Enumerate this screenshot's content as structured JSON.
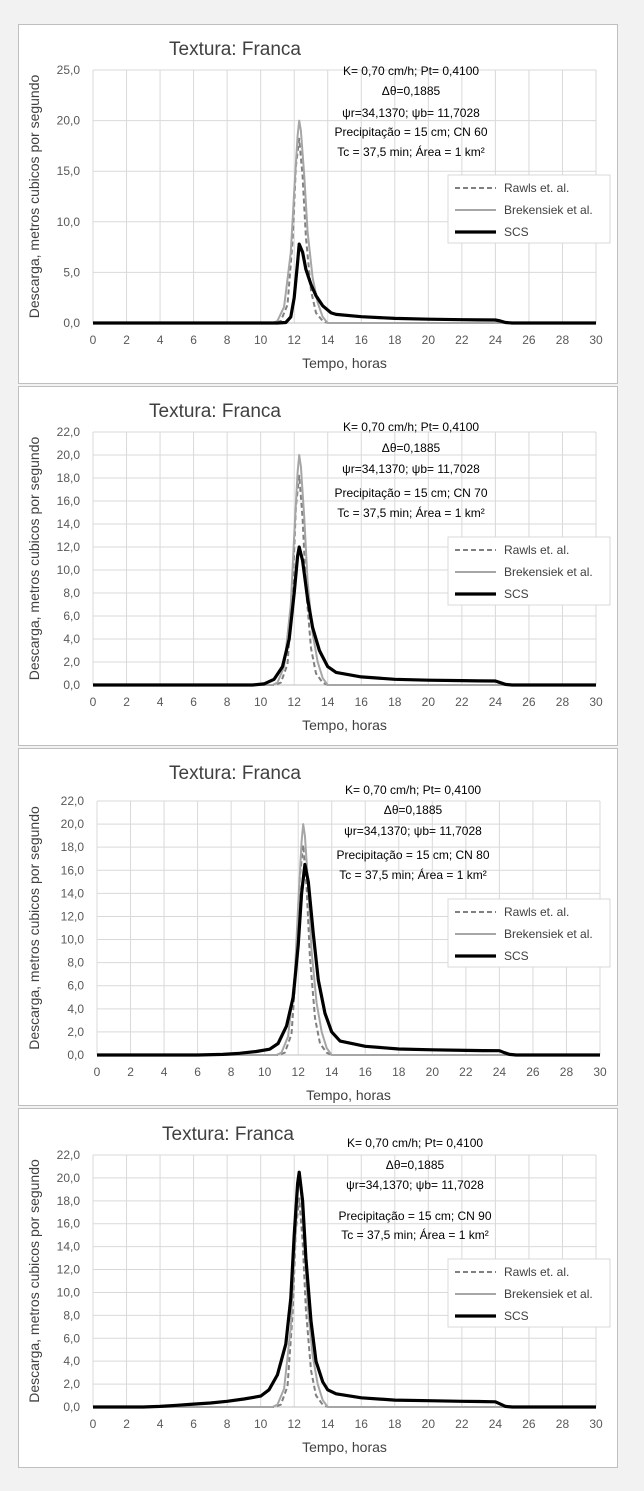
{
  "chart_data": [
    {
      "type": "line",
      "title": "Textura: Franca",
      "xlabel": "Tempo, horas",
      "ylabel": "Descarga, metros cubicos por segundo",
      "xlim": [
        0,
        30
      ],
      "ylim": [
        0,
        25
      ],
      "xticks": [
        "0",
        "2",
        "4",
        "6",
        "8",
        "10",
        "12",
        "14",
        "16",
        "18",
        "20",
        "22",
        "24",
        "26",
        "28",
        "30"
      ],
      "yticks": [
        "0,0",
        "5,0",
        "10,0",
        "15,0",
        "20,0",
        "25,0"
      ],
      "grid": true,
      "legend_position": "right",
      "annotations": [
        "K= 0,70 cm/h; Pt= 0,4100",
        "Δθ=0,1885",
        "ψr=34,1370;  ψb= 11,7028",
        "Precipitação = 15 cm; CN 60",
        "Tc = 37,5  min; Área = 1 km²"
      ],
      "series": [
        {
          "name": "Rawls et. al.",
          "color": "#808080",
          "style": "dashed",
          "x": [
            0,
            10.8,
            11.2,
            11.6,
            11.9,
            12.1,
            12.3,
            12.5,
            12.7,
            13.0,
            13.3,
            13.7,
            14.0,
            30
          ],
          "y": [
            0,
            0,
            0.2,
            1.8,
            8.0,
            15.5,
            18.2,
            14.5,
            8.5,
            3.2,
            1.0,
            0.2,
            0,
            0
          ]
        },
        {
          "name": "Brekensiek et al.",
          "color": "#a6a6a6",
          "style": "solid",
          "x": [
            0,
            10.7,
            11.0,
            11.4,
            11.8,
            12.0,
            12.2,
            12.3,
            12.4,
            12.6,
            12.8,
            13.1,
            13.4,
            13.7,
            14.0,
            30
          ],
          "y": [
            0,
            0,
            0.2,
            1.6,
            7.0,
            13.0,
            18.5,
            20.0,
            19.0,
            14.5,
            9.0,
            4.5,
            2.0,
            0.6,
            0,
            0
          ]
        },
        {
          "name": "SCS",
          "color": "#000000",
          "style": "solid",
          "x": [
            0,
            11.0,
            11.5,
            11.8,
            12.0,
            12.2,
            12.3,
            12.5,
            12.7,
            13.0,
            13.3,
            13.7,
            14.2,
            14.5,
            16,
            18,
            20,
            22,
            23,
            24,
            24.3,
            24.6,
            25,
            30
          ],
          "y": [
            0,
            0,
            0.05,
            0.6,
            2.5,
            6.0,
            7.8,
            7.0,
            5.3,
            3.8,
            2.7,
            1.7,
            1.0,
            0.85,
            0.62,
            0.45,
            0.38,
            0.33,
            0.31,
            0.3,
            0.2,
            0.05,
            0,
            0
          ]
        }
      ]
    },
    {
      "type": "line",
      "title": "Textura: Franca",
      "xlabel": "Tempo, horas",
      "ylabel": "Descarga, metros cubicos por segundo",
      "xlim": [
        0,
        30
      ],
      "ylim": [
        0,
        22
      ],
      "xticks": [
        "0",
        "2",
        "4",
        "6",
        "8",
        "10",
        "12",
        "14",
        "16",
        "18",
        "20",
        "22",
        "24",
        "26",
        "28",
        "30"
      ],
      "yticks": [
        "0,0",
        "2,0",
        "4,0",
        "6,0",
        "8,0",
        "10,0",
        "12,0",
        "14,0",
        "16,0",
        "18,0",
        "20,0",
        "22,0"
      ],
      "grid": true,
      "legend_position": "right",
      "annotations": [
        "K= 0,70 cm/h; Pt= 0,4100",
        "Δθ=0,1885",
        "ψr=34,1370;  ψb= 11,7028",
        "Precipitação = 15 cm; CN 70",
        "Tc = 37,5  min; Área = 1 km²"
      ],
      "series": [
        {
          "name": "Rawls et. al.",
          "color": "#808080",
          "style": "dashed",
          "x": [
            0,
            10.8,
            11.2,
            11.6,
            11.9,
            12.1,
            12.3,
            12.5,
            12.7,
            13.0,
            13.3,
            13.7,
            14.0,
            30
          ],
          "y": [
            0,
            0,
            0.2,
            1.8,
            8.0,
            15.5,
            18.2,
            14.5,
            8.5,
            3.2,
            1.0,
            0.2,
            0,
            0
          ]
        },
        {
          "name": "Brekensiek et al.",
          "color": "#a6a6a6",
          "style": "solid",
          "x": [
            0,
            10.7,
            11.0,
            11.4,
            11.8,
            12.0,
            12.2,
            12.3,
            12.4,
            12.6,
            12.8,
            13.1,
            13.4,
            13.7,
            14.0,
            30
          ],
          "y": [
            0,
            0,
            0.2,
            1.6,
            7.0,
            13.0,
            18.5,
            20.0,
            19.0,
            14.5,
            9.0,
            4.5,
            2.0,
            0.6,
            0,
            0
          ]
        },
        {
          "name": "SCS",
          "color": "#000000",
          "style": "solid",
          "x": [
            0,
            9.5,
            10.2,
            10.8,
            11.3,
            11.7,
            12.0,
            12.2,
            12.3,
            12.5,
            12.8,
            13.1,
            13.5,
            14.0,
            14.5,
            16,
            18,
            20,
            22,
            23,
            24,
            24.3,
            24.6,
            25,
            30
          ],
          "y": [
            0,
            0,
            0.1,
            0.5,
            1.6,
            4.0,
            8.0,
            11.2,
            12.0,
            10.8,
            7.5,
            5.0,
            3.0,
            1.6,
            1.1,
            0.7,
            0.5,
            0.42,
            0.38,
            0.36,
            0.35,
            0.2,
            0.05,
            0,
            0
          ]
        }
      ]
    },
    {
      "type": "line",
      "title": "Textura: Franca",
      "xlabel": "Tempo, horas",
      "ylabel": "Descarga, metros cubicos por segundo",
      "xlim": [
        0,
        30
      ],
      "ylim": [
        0,
        22
      ],
      "xticks": [
        "0",
        "2",
        "4",
        "6",
        "8",
        "10",
        "12",
        "14",
        "16",
        "18",
        "20",
        "22",
        "24",
        "26",
        "28",
        "30"
      ],
      "yticks": [
        "0,0",
        "2,0",
        "4,0",
        "6,0",
        "8,0",
        "10,0",
        "12,0",
        "14,0",
        "16,0",
        "18,0",
        "20,0",
        "22,0"
      ],
      "grid": true,
      "legend_position": "right",
      "annotations": [
        "K= 0,70 cm/h; Pt= 0,4100",
        "Δθ=0,1885",
        "ψr=34,1370;  ψb= 11,7028",
        "Precipitação = 15 cm; CN 80",
        "Tc = 37,5  min; Área = 1 km²"
      ],
      "series": [
        {
          "name": "Rawls et. al.",
          "color": "#808080",
          "style": "dashed",
          "x": [
            0,
            10.8,
            11.2,
            11.6,
            11.9,
            12.1,
            12.3,
            12.5,
            12.7,
            13.0,
            13.3,
            13.7,
            14.0,
            30
          ],
          "y": [
            0,
            0,
            0.2,
            1.8,
            8.0,
            15.5,
            18.2,
            14.5,
            8.5,
            3.2,
            1.0,
            0.2,
            0,
            0
          ]
        },
        {
          "name": "Brekensiek et al.",
          "color": "#a6a6a6",
          "style": "solid",
          "x": [
            0,
            10.7,
            11.0,
            11.4,
            11.8,
            12.0,
            12.2,
            12.3,
            12.4,
            12.6,
            12.8,
            13.1,
            13.4,
            13.7,
            14.0,
            30
          ],
          "y": [
            0,
            0,
            0.2,
            1.6,
            7.0,
            13.0,
            18.5,
            20.0,
            19.0,
            14.5,
            9.0,
            4.5,
            2.0,
            0.6,
            0,
            0
          ]
        },
        {
          "name": "SCS",
          "color": "#000000",
          "style": "solid",
          "x": [
            0,
            6.0,
            7.5,
            8.5,
            9.5,
            10.3,
            10.8,
            11.3,
            11.7,
            12.0,
            12.2,
            12.4,
            12.6,
            12.9,
            13.2,
            13.6,
            14.0,
            14.5,
            16,
            18,
            20,
            22,
            23,
            24,
            24.3,
            24.6,
            25,
            30
          ],
          "y": [
            0,
            0,
            0.05,
            0.15,
            0.3,
            0.5,
            1.0,
            2.5,
            5.0,
            9.5,
            14.0,
            16.5,
            15.0,
            10.5,
            6.5,
            3.6,
            2.0,
            1.2,
            0.75,
            0.52,
            0.45,
            0.4,
            0.38,
            0.37,
            0.2,
            0.05,
            0,
            0
          ]
        }
      ]
    },
    {
      "type": "line",
      "title": "Textura: Franca",
      "xlabel": "Tempo, horas",
      "ylabel": "Descarga, metros cubicos por segundo",
      "xlim": [
        0,
        30
      ],
      "ylim": [
        0,
        22
      ],
      "xticks": [
        "0",
        "2",
        "4",
        "6",
        "8",
        "10",
        "12",
        "14",
        "16",
        "18",
        "20",
        "22",
        "24",
        "26",
        "28",
        "30"
      ],
      "yticks": [
        "0,0",
        "2,0",
        "4,0",
        "6,0",
        "8,0",
        "10,0",
        "12,0",
        "14,0",
        "16,0",
        "18,0",
        "20,0",
        "22,0"
      ],
      "grid": true,
      "legend_position": "right",
      "annotations": [
        "K= 0,70 cm/h; Pt= 0,4100",
        "Δθ=0,1885",
        "ψr=34,1370;  ψb= 11,7028",
        "Precipitação = 15 cm; CN 90",
        "Tc = 37,5  min; Área = 1 km²"
      ],
      "series": [
        {
          "name": "Rawls et. al.",
          "color": "#808080",
          "style": "dashed",
          "x": [
            0,
            10.8,
            11.2,
            11.6,
            11.9,
            12.1,
            12.3,
            12.5,
            12.7,
            13.0,
            13.3,
            13.7,
            14.0,
            30
          ],
          "y": [
            0,
            0,
            0.2,
            1.8,
            8.0,
            15.5,
            18.2,
            14.5,
            8.5,
            3.2,
            1.0,
            0.2,
            0,
            0
          ]
        },
        {
          "name": "Brekensiek et al.",
          "color": "#a6a6a6",
          "style": "solid",
          "x": [
            0,
            10.7,
            11.0,
            11.4,
            11.8,
            12.0,
            12.2,
            12.3,
            12.4,
            12.6,
            12.8,
            13.1,
            13.4,
            13.7,
            14.0,
            30
          ],
          "y": [
            0,
            0,
            0.2,
            1.6,
            7.0,
            13.0,
            18.5,
            20.0,
            19.0,
            14.5,
            9.0,
            4.5,
            2.0,
            0.6,
            0,
            0
          ]
        },
        {
          "name": "SCS",
          "color": "#000000",
          "style": "solid",
          "x": [
            0,
            3.0,
            4.0,
            5.0,
            6.0,
            7.0,
            8.0,
            9.0,
            10.0,
            10.5,
            11.0,
            11.5,
            11.8,
            12.0,
            12.2,
            12.3,
            12.5,
            12.7,
            13.0,
            13.3,
            13.7,
            14.0,
            14.5,
            16,
            18,
            20,
            22,
            23,
            24,
            24.3,
            24.6,
            25,
            30
          ],
          "y": [
            0,
            0,
            0.05,
            0.15,
            0.25,
            0.35,
            0.5,
            0.7,
            0.95,
            1.5,
            2.8,
            5.5,
            9.5,
            15.0,
            19.5,
            20.5,
            18.0,
            13.0,
            7.5,
            4.0,
            2.2,
            1.5,
            1.15,
            0.8,
            0.6,
            0.55,
            0.5,
            0.48,
            0.45,
            0.25,
            0.05,
            0,
            0
          ]
        }
      ]
    }
  ]
}
